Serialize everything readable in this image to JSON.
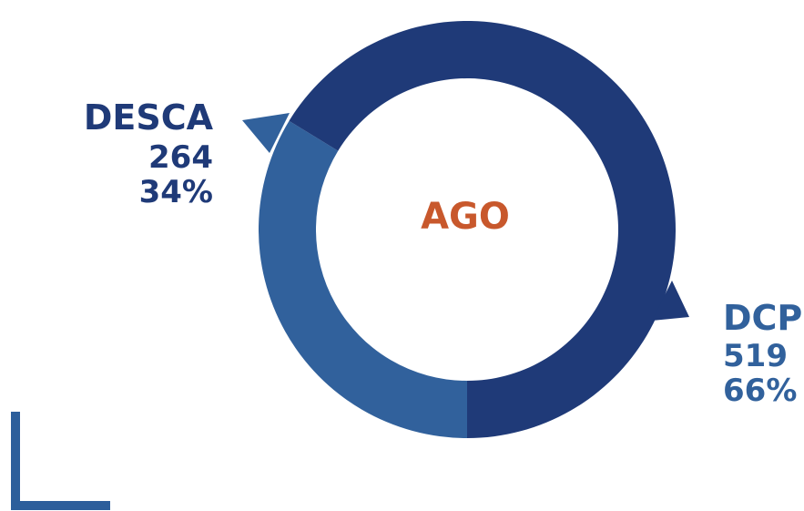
{
  "chart_data": {
    "type": "pie",
    "center_label": "AGO",
    "slices": [
      {
        "name": "DCP",
        "value": 519,
        "percent": "66%",
        "value_label": "519",
        "color": "#1f3a78"
      },
      {
        "name": "DESCA",
        "value": 264,
        "percent": "34%",
        "value_label": "264",
        "color": "#31619c"
      }
    ]
  },
  "colors": {
    "dark_blue": "#1f3a78",
    "mid_blue": "#31619c",
    "center_text": "#c8582c",
    "bracket": "#2c5e9b"
  }
}
